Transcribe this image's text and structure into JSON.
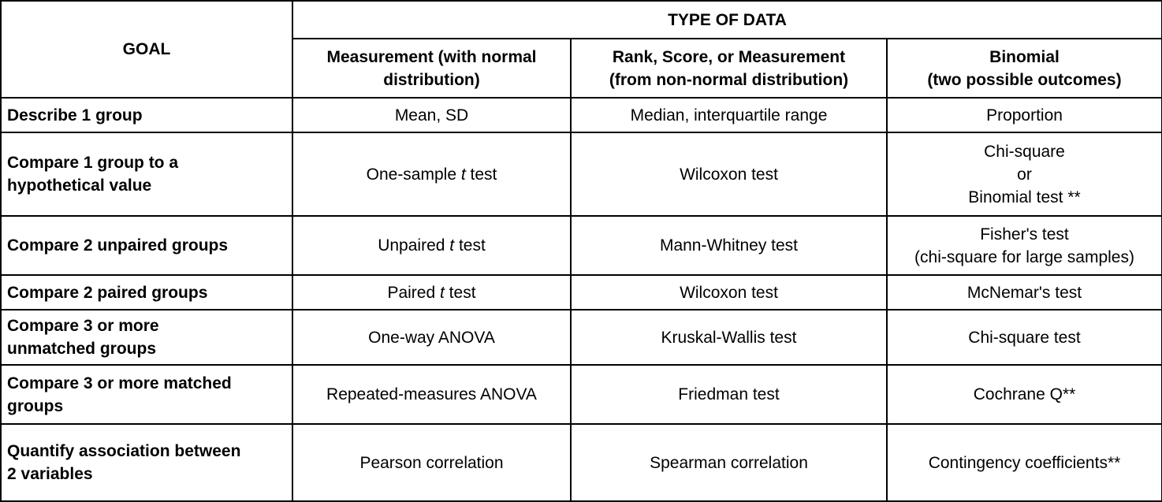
{
  "header": {
    "goal": "GOAL",
    "type_of_data": "TYPE OF DATA",
    "columns": [
      [
        "Measurement (with normal",
        "distribution)"
      ],
      [
        "Rank, Score, or Measurement",
        "(from non-normal distribution)"
      ],
      [
        "Binomial",
        "(two possible outcomes)"
      ]
    ]
  },
  "rows": [
    {
      "goal": [
        "Describe 1 group"
      ],
      "cells": [
        {
          "pre": "Mean, SD"
        },
        {
          "pre": "Median, interquartile range"
        },
        {
          "lines": [
            "Proportion"
          ]
        }
      ]
    },
    {
      "goal": [
        "Compare 1 group to a",
        "hypothetical value"
      ],
      "cells": [
        {
          "pre": "One-sample ",
          "italic": "t",
          "post": " test"
        },
        {
          "pre": "Wilcoxon test"
        },
        {
          "lines": [
            "Chi-square",
            "or",
            "Binomial test **"
          ]
        }
      ]
    },
    {
      "goal": [
        "Compare 2 unpaired groups"
      ],
      "cells": [
        {
          "pre": "Unpaired ",
          "italic": "t",
          "post": " test"
        },
        {
          "pre": "Mann-Whitney test"
        },
        {
          "lines": [
            "Fisher's test",
            "(chi-square for large samples)"
          ]
        }
      ]
    },
    {
      "goal": [
        "Compare 2 paired groups"
      ],
      "cells": [
        {
          "pre": "Paired ",
          "italic": "t",
          "post": " test"
        },
        {
          "pre": "Wilcoxon test"
        },
        {
          "lines": [
            "McNemar's test"
          ]
        }
      ]
    },
    {
      "goal": [
        "Compare 3 or more",
        "unmatched groups"
      ],
      "cells": [
        {
          "pre": "One-way ANOVA"
        },
        {
          "pre": "Kruskal-Wallis test"
        },
        {
          "lines": [
            "Chi-square test"
          ]
        }
      ]
    },
    {
      "goal": [
        "Compare 3 or more matched",
        "groups"
      ],
      "cells": [
        {
          "pre": "Repeated-measures ANOVA"
        },
        {
          "pre": "Friedman test"
        },
        {
          "lines": [
            "Cochrane Q**"
          ]
        }
      ]
    },
    {
      "goal": [
        "Quantify association between",
        "2 variables"
      ],
      "cells": [
        {
          "pre": "Pearson correlation"
        },
        {
          "pre": "Spearman correlation"
        },
        {
          "lines": [
            "Contingency coefficients**"
          ]
        }
      ]
    }
  ]
}
